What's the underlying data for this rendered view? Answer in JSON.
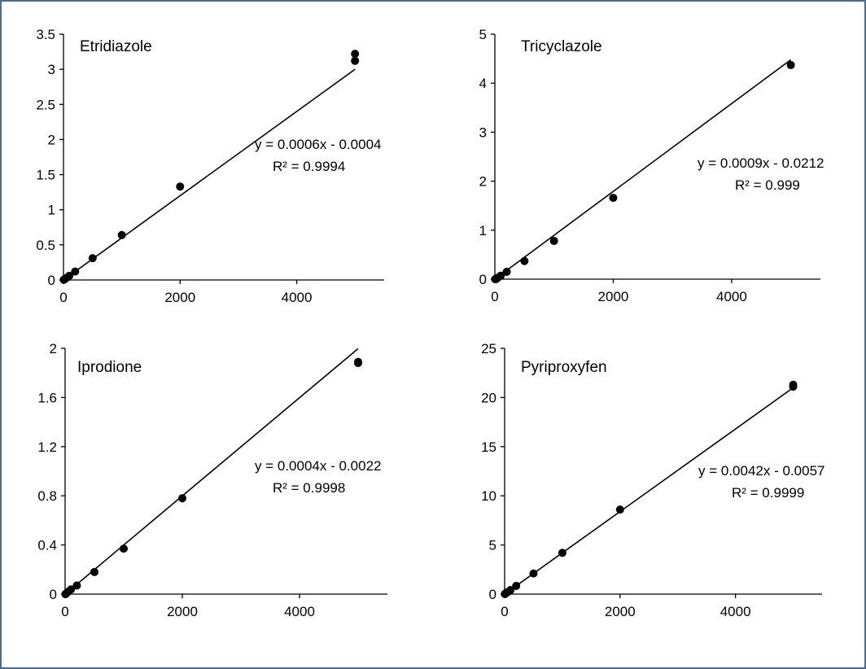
{
  "chart_data": [
    {
      "type": "scatter",
      "title": "Etridiazole",
      "xlim": [
        0,
        5500
      ],
      "ylim": [
        0,
        3.5
      ],
      "xticks": [
        0,
        2000,
        4000
      ],
      "xtick_labels": [
        "0",
        "2000",
        "4000"
      ],
      "yticks": [
        0,
        0.5,
        1,
        1.5,
        2,
        2.5,
        3,
        3.5
      ],
      "ytick_labels": [
        "0",
        "0.5",
        "1",
        "1.5",
        "2",
        "2.5",
        "3",
        "3.5"
      ],
      "x": [
        5,
        10,
        20,
        50,
        100,
        200,
        500,
        1000,
        2000,
        5000,
        5000
      ],
      "y": [
        0.0026,
        0.0056,
        0.0116,
        0.0296,
        0.0596,
        0.12,
        0.31,
        0.64,
        1.33,
        3.12,
        3.22
      ],
      "trendline": {
        "slope": 0.0006,
        "intercept": -0.0004
      },
      "equation": "y = 0.0006x - 0.0004",
      "r2": "R² = 0.9994",
      "grid": false,
      "legend": "none"
    },
    {
      "type": "scatter",
      "title": "Tricyclazole",
      "xlim": [
        0,
        5500
      ],
      "ylim": [
        0,
        5
      ],
      "xticks": [
        0,
        2000,
        4000
      ],
      "xtick_labels": [
        "0",
        "2000",
        "4000"
      ],
      "yticks": [
        0,
        1,
        2,
        3,
        4,
        5
      ],
      "ytick_labels": [
        "0",
        "1",
        "2",
        "3",
        "4",
        "5"
      ],
      "x": [
        5,
        10,
        20,
        50,
        100,
        200,
        500,
        1000,
        2000,
        5000
      ],
      "y": [
        0.0,
        0.0,
        0.0,
        0.03,
        0.07,
        0.15,
        0.37,
        0.78,
        1.66,
        4.37
      ],
      "trendline": {
        "slope": 0.0009,
        "intercept": -0.0212
      },
      "equation": "y = 0.0009x - 0.0212",
      "r2": "R² = 0.999",
      "grid": false,
      "legend": "none"
    },
    {
      "type": "scatter",
      "title": "Iprodione",
      "xlim": [
        0,
        5500
      ],
      "ylim": [
        0,
        2
      ],
      "xticks": [
        0,
        2000,
        4000
      ],
      "xtick_labels": [
        "0",
        "2000",
        "4000"
      ],
      "yticks": [
        0,
        0.4,
        0.8,
        1.2,
        1.6,
        2
      ],
      "ytick_labels": [
        "0",
        "0.4",
        "0.8",
        "1.2",
        "1.6",
        "2"
      ],
      "x": [
        5,
        10,
        20,
        50,
        100,
        200,
        500,
        1000,
        2000,
        5000,
        5000
      ],
      "y": [
        0.0,
        0.0,
        0.006,
        0.018,
        0.038,
        0.07,
        0.18,
        0.37,
        0.78,
        1.88,
        1.89
      ],
      "trendline": {
        "slope": 0.0004,
        "intercept": -0.0022
      },
      "equation": "y = 0.0004x - 0.0022",
      "r2": "R² = 0.9998",
      "grid": false,
      "legend": "none"
    },
    {
      "type": "scatter",
      "title": "Pyriproxyfen",
      "xlim": [
        0,
        5500
      ],
      "ylim": [
        0,
        25
      ],
      "xticks": [
        0,
        2000,
        4000
      ],
      "xtick_labels": [
        "0",
        "2000",
        "4000"
      ],
      "yticks": [
        0,
        5,
        10,
        15,
        20,
        25
      ],
      "ytick_labels": [
        "0",
        "5",
        "10",
        "15",
        "20",
        "25"
      ],
      "x": [
        5,
        10,
        20,
        50,
        100,
        200,
        500,
        1000,
        2000,
        5000,
        5000
      ],
      "y": [
        0.015,
        0.036,
        0.078,
        0.2,
        0.41,
        0.84,
        2.1,
        4.2,
        8.6,
        21.1,
        21.3
      ],
      "trendline": {
        "slope": 0.0042,
        "intercept": -0.0057
      },
      "equation": "y = 0.0042x - 0.0057",
      "r2": "R² = 0.9999",
      "grid": false,
      "legend": "none"
    }
  ]
}
